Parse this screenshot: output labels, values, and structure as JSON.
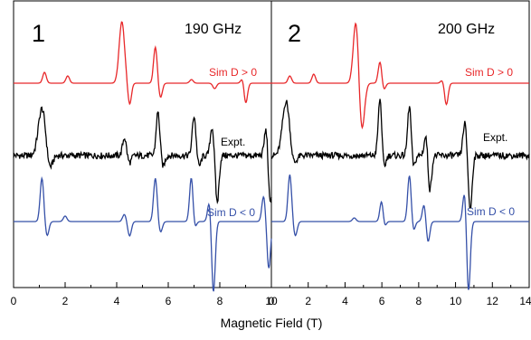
{
  "chart_data": [
    {
      "type": "line",
      "panel_label": "1",
      "frequency_label": "190 GHz",
      "xlim": [
        0,
        10
      ],
      "x_ticks": [
        "0",
        "2",
        "4",
        "6",
        "8",
        "10"
      ],
      "series": [
        {
          "name": "Sim D > 0",
          "color": "#e8282a",
          "peaks": [
            [
              1.2,
              0.3,
              2
            ],
            [
              2.1,
              0.2,
              2
            ],
            [
              4.2,
              1.7,
              3
            ],
            [
              4.5,
              -0.6,
              2
            ],
            [
              5.5,
              1.0,
              2
            ],
            [
              5.7,
              -0.4,
              2
            ],
            [
              6.9,
              0.1,
              2
            ],
            [
              7.8,
              -0.15,
              2
            ],
            [
              8.9,
              0.2,
              2
            ],
            [
              9.0,
              -0.6,
              2
            ]
          ]
        },
        {
          "name": "Expt.",
          "color": "#000000",
          "peaks": [
            [
              1.1,
              1.3,
              4
            ],
            [
              1.4,
              -0.4,
              3
            ],
            [
              4.3,
              0.5,
              2
            ],
            [
              4.5,
              -0.2,
              2
            ],
            [
              5.6,
              1.2,
              2
            ],
            [
              5.8,
              -0.3,
              2
            ],
            [
              7.0,
              1.1,
              2
            ],
            [
              7.2,
              -0.3,
              2
            ],
            [
              7.7,
              0.8,
              2
            ],
            [
              7.9,
              -1.3,
              2
            ],
            [
              9.8,
              0.8,
              2
            ],
            [
              9.95,
              -1.4,
              2
            ]
          ]
        },
        {
          "name": "Sim D < 0",
          "color": "#3550a8",
          "peaks": [
            [
              1.1,
              1.2,
              2
            ],
            [
              1.3,
              -0.4,
              2
            ],
            [
              2.0,
              0.15,
              2
            ],
            [
              4.3,
              0.2,
              2
            ],
            [
              4.5,
              -0.4,
              2
            ],
            [
              5.5,
              1.2,
              2
            ],
            [
              5.7,
              -0.3,
              2
            ],
            [
              6.9,
              1.3,
              2
            ],
            [
              7.0,
              -0.3,
              2
            ],
            [
              7.6,
              0.6,
              2
            ],
            [
              7.75,
              -2.0,
              2
            ],
            [
              9.7,
              0.7,
              2
            ],
            [
              9.9,
              -1.3,
              2
            ]
          ]
        }
      ]
    },
    {
      "type": "line",
      "panel_label": "2",
      "frequency_label": "200 GHz",
      "xlim": [
        0,
        14
      ],
      "x_ticks": [
        "0",
        "2",
        "4",
        "6",
        "8",
        "10",
        "12",
        "14"
      ],
      "series": [
        {
          "name": "Sim D > 0",
          "color": "#e8282a",
          "peaks": [
            [
              1.0,
              0.2,
              2
            ],
            [
              2.3,
              0.25,
              2
            ],
            [
              4.6,
              1.8,
              3
            ],
            [
              4.9,
              -1.4,
              3
            ],
            [
              5.9,
              0.6,
              2
            ],
            [
              6.1,
              -0.2,
              2
            ],
            [
              9.3,
              0.1,
              2
            ],
            [
              9.5,
              -0.6,
              2
            ]
          ]
        },
        {
          "name": "Expt.",
          "color": "#000000",
          "peaks": [
            [
              0.8,
              1.5,
              4
            ],
            [
              1.2,
              -0.3,
              3
            ],
            [
              5.9,
              1.6,
              2
            ],
            [
              6.1,
              -0.4,
              2
            ],
            [
              7.5,
              1.4,
              2
            ],
            [
              7.7,
              -0.4,
              2
            ],
            [
              8.4,
              0.6,
              2
            ],
            [
              8.6,
              -1.0,
              2
            ],
            [
              10.5,
              0.9,
              2
            ],
            [
              10.8,
              -1.5,
              2
            ]
          ]
        },
        {
          "name": "Sim D < 0",
          "color": "#3550a8",
          "peaks": [
            [
              1.0,
              1.3,
              2
            ],
            [
              1.3,
              -0.4,
              2
            ],
            [
              4.5,
              0.1,
              2
            ],
            [
              6.0,
              0.7,
              2
            ],
            [
              6.1,
              -0.3,
              2
            ],
            [
              7.5,
              1.3,
              2
            ],
            [
              7.7,
              -0.3,
              2
            ],
            [
              8.3,
              0.5,
              2
            ],
            [
              8.5,
              -0.6,
              2
            ],
            [
              10.5,
              0.9,
              2
            ],
            [
              10.7,
              -2.0,
              2
            ]
          ]
        }
      ]
    }
  ],
  "xlabel": "Magnetic Field (T)"
}
